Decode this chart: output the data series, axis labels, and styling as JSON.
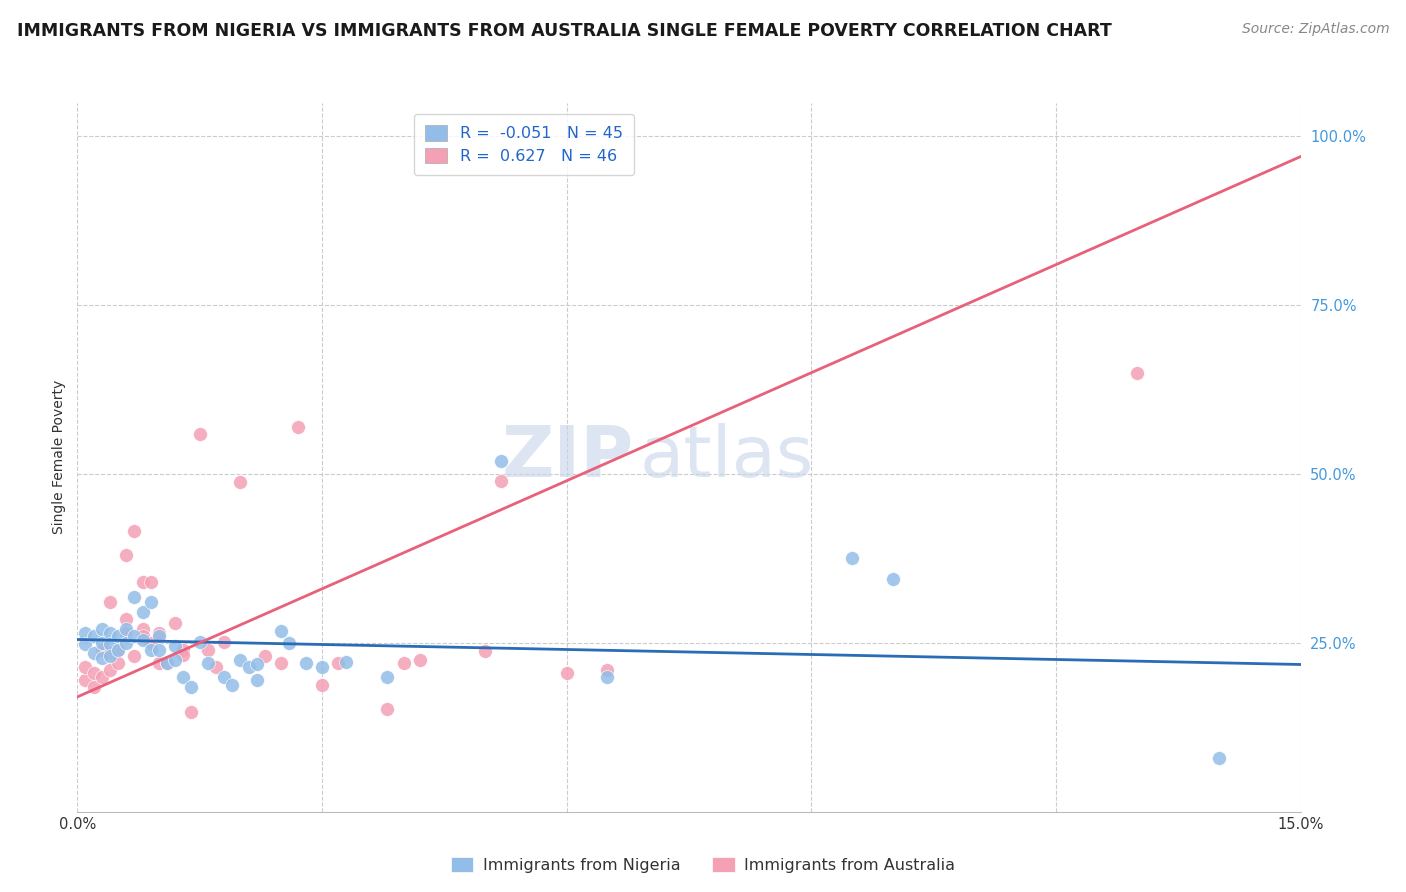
{
  "title": "IMMIGRANTS FROM NIGERIA VS IMMIGRANTS FROM AUSTRALIA SINGLE FEMALE POVERTY CORRELATION CHART",
  "source": "Source: ZipAtlas.com",
  "ylabel_label": "Single Female Poverty",
  "x_min": 0.0,
  "x_max": 0.15,
  "y_min": 0.0,
  "y_max": 1.05,
  "x_ticks": [
    0.0,
    0.03,
    0.06,
    0.09,
    0.12,
    0.15
  ],
  "x_tick_labels": [
    "0.0%",
    "",
    "",
    "",
    "",
    "15.0%"
  ],
  "y_ticks": [
    0.25,
    0.5,
    0.75,
    1.0
  ],
  "y_tick_labels": [
    "25.0%",
    "50.0%",
    "75.0%",
    "100.0%"
  ],
  "nigeria_color": "#92BDE8",
  "australia_color": "#F4A0B5",
  "nigeria_line_color": "#2A6CB5",
  "australia_line_color": "#E8607A",
  "nigeria_R": -0.051,
  "nigeria_N": 45,
  "australia_R": 0.627,
  "australia_N": 46,
  "nigeria_line_y0": 0.255,
  "nigeria_line_y1": 0.218,
  "australia_line_y0": 0.17,
  "australia_line_y1": 0.97,
  "nigeria_scatter": [
    [
      0.001,
      0.265
    ],
    [
      0.001,
      0.248
    ],
    [
      0.002,
      0.26
    ],
    [
      0.002,
      0.235
    ],
    [
      0.003,
      0.27
    ],
    [
      0.003,
      0.25
    ],
    [
      0.003,
      0.228
    ],
    [
      0.004,
      0.265
    ],
    [
      0.004,
      0.248
    ],
    [
      0.004,
      0.23
    ],
    [
      0.005,
      0.26
    ],
    [
      0.005,
      0.24
    ],
    [
      0.006,
      0.27
    ],
    [
      0.006,
      0.25
    ],
    [
      0.007,
      0.318
    ],
    [
      0.007,
      0.26
    ],
    [
      0.008,
      0.295
    ],
    [
      0.008,
      0.255
    ],
    [
      0.009,
      0.31
    ],
    [
      0.009,
      0.24
    ],
    [
      0.01,
      0.26
    ],
    [
      0.01,
      0.24
    ],
    [
      0.011,
      0.22
    ],
    [
      0.012,
      0.245
    ],
    [
      0.012,
      0.225
    ],
    [
      0.013,
      0.2
    ],
    [
      0.014,
      0.185
    ],
    [
      0.015,
      0.252
    ],
    [
      0.016,
      0.22
    ],
    [
      0.018,
      0.2
    ],
    [
      0.019,
      0.188
    ],
    [
      0.02,
      0.225
    ],
    [
      0.021,
      0.215
    ],
    [
      0.022,
      0.218
    ],
    [
      0.022,
      0.195
    ],
    [
      0.025,
      0.268
    ],
    [
      0.026,
      0.25
    ],
    [
      0.028,
      0.22
    ],
    [
      0.03,
      0.215
    ],
    [
      0.033,
      0.222
    ],
    [
      0.038,
      0.2
    ],
    [
      0.052,
      0.52
    ],
    [
      0.065,
      0.2
    ],
    [
      0.095,
      0.375
    ],
    [
      0.1,
      0.345
    ],
    [
      0.14,
      0.08
    ]
  ],
  "australia_scatter": [
    [
      0.001,
      0.195
    ],
    [
      0.001,
      0.215
    ],
    [
      0.002,
      0.185
    ],
    [
      0.002,
      0.205
    ],
    [
      0.003,
      0.2
    ],
    [
      0.003,
      0.24
    ],
    [
      0.004,
      0.21
    ],
    [
      0.004,
      0.235
    ],
    [
      0.004,
      0.31
    ],
    [
      0.005,
      0.24
    ],
    [
      0.005,
      0.22
    ],
    [
      0.006,
      0.265
    ],
    [
      0.006,
      0.285
    ],
    [
      0.006,
      0.38
    ],
    [
      0.007,
      0.23
    ],
    [
      0.007,
      0.415
    ],
    [
      0.008,
      0.27
    ],
    [
      0.008,
      0.26
    ],
    [
      0.008,
      0.34
    ],
    [
      0.009,
      0.34
    ],
    [
      0.009,
      0.25
    ],
    [
      0.01,
      0.22
    ],
    [
      0.01,
      0.265
    ],
    [
      0.011,
      0.22
    ],
    [
      0.012,
      0.28
    ],
    [
      0.013,
      0.24
    ],
    [
      0.013,
      0.232
    ],
    [
      0.014,
      0.148
    ],
    [
      0.015,
      0.56
    ],
    [
      0.016,
      0.24
    ],
    [
      0.017,
      0.215
    ],
    [
      0.018,
      0.252
    ],
    [
      0.02,
      0.488
    ],
    [
      0.023,
      0.23
    ],
    [
      0.025,
      0.22
    ],
    [
      0.027,
      0.57
    ],
    [
      0.03,
      0.188
    ],
    [
      0.032,
      0.22
    ],
    [
      0.038,
      0.152
    ],
    [
      0.04,
      0.22
    ],
    [
      0.042,
      0.225
    ],
    [
      0.05,
      0.238
    ],
    [
      0.052,
      0.49
    ],
    [
      0.06,
      0.205
    ],
    [
      0.065,
      0.21
    ],
    [
      0.13,
      0.65
    ]
  ],
  "watermark_zip": "ZIP",
  "watermark_atlas": "atlas",
  "background_color": "#FFFFFF",
  "grid_color": "#CCCCCC",
  "title_fontsize": 12.5,
  "axis_label_fontsize": 10,
  "tick_fontsize": 10.5,
  "legend_fontsize": 11.5,
  "source_fontsize": 10
}
